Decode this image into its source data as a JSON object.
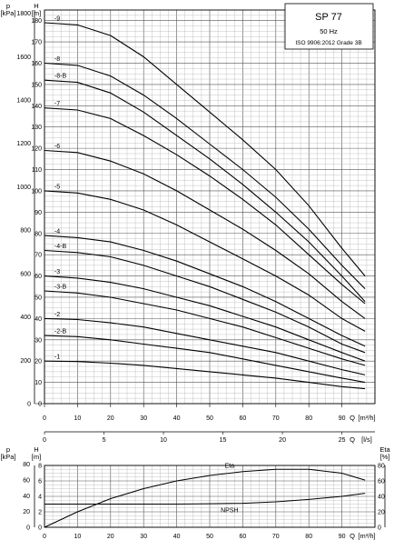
{
  "legend": {
    "model": "SP 77",
    "frequency": "50 Hz",
    "standard": "ISO 9906:2012 Grade 3B"
  },
  "chart_data": [
    {
      "type": "line",
      "name": "pump-curves",
      "x_axis_label": "Q [m³/h]",
      "x_axis_label_secondary": "Q [l/s]",
      "y_axis_label": "H [m]",
      "y_axis_label_secondary": "p [kPa]",
      "y_unit_top_left": "p",
      "y_unit_top_right": "H",
      "y_unit_left": "[kPa]",
      "y_unit_right": "[m]",
      "xlim": [
        0,
        100
      ],
      "ylim": [
        0,
        185
      ],
      "x_ticks": [
        0,
        10,
        20,
        30,
        40,
        50,
        60,
        70,
        80,
        90
      ],
      "x_tick_labels": [
        "0",
        "10",
        "20",
        "30",
        "40",
        "50",
        "60",
        "70",
        "80",
        "90"
      ],
      "x_end_label": "Q",
      "x_end_unit": "[m³/h]",
      "ls_ticks": [
        0,
        5,
        10,
        15,
        20,
        25
      ],
      "ls_tick_labels": [
        "0",
        "5",
        "10",
        "15",
        "20",
        "25"
      ],
      "ls_end_label": "Q",
      "ls_end_unit": "[l/s]",
      "h_ticks": [
        0,
        10,
        20,
        30,
        40,
        50,
        60,
        70,
        80,
        90,
        100,
        110,
        120,
        130,
        140,
        150,
        160,
        170,
        180
      ],
      "h_tick_labels": [
        "0",
        "10",
        "20",
        "30",
        "40",
        "50",
        "60",
        "70",
        "80",
        "90",
        "100",
        "110",
        "120",
        "130",
        "140",
        "150",
        "160",
        "170",
        "180"
      ],
      "p_ticks": [
        0,
        200,
        400,
        600,
        800,
        1000,
        1200,
        1400,
        1600,
        1800
      ],
      "p_tick_labels": [
        "0",
        "200",
        "400",
        "600",
        "800",
        "1000",
        "1200",
        "1400",
        "1600",
        "1800"
      ],
      "grid": true,
      "legend_position": "top-right",
      "series": [
        {
          "name": "-9",
          "label": "-9",
          "h0": 179,
          "x": [
            0,
            10,
            20,
            30,
            40,
            50,
            60,
            70,
            80,
            90,
            97
          ],
          "y": [
            179,
            178,
            173,
            163,
            150,
            137,
            124,
            110,
            93,
            73,
            60
          ]
        },
        {
          "name": "-8",
          "label": "-8",
          "h0": 160,
          "x": [
            0,
            10,
            20,
            30,
            40,
            50,
            60,
            70,
            80,
            90,
            97
          ],
          "y": [
            160,
            159,
            154,
            145,
            134,
            122,
            110,
            97,
            82,
            65,
            54
          ]
        },
        {
          "name": "-8-B",
          "label": "-8-B",
          "h0": 152,
          "x": [
            0,
            10,
            20,
            30,
            40,
            50,
            60,
            70,
            80,
            90,
            97
          ],
          "y": [
            152,
            151,
            146,
            137,
            126,
            115,
            103,
            90,
            76,
            60,
            48
          ]
        },
        {
          "name": "-7",
          "label": "-7",
          "h0": 139,
          "x": [
            0,
            10,
            20,
            30,
            40,
            50,
            60,
            70,
            80,
            90,
            97
          ],
          "y": [
            139,
            138,
            134,
            126,
            117,
            107,
            96,
            84,
            70,
            56,
            47
          ]
        },
        {
          "name": "-6",
          "label": "-6",
          "h0": 119,
          "x": [
            0,
            10,
            20,
            30,
            40,
            50,
            60,
            70,
            80,
            90,
            97
          ],
          "y": [
            119,
            118,
            114,
            108,
            100,
            91,
            82,
            72,
            61,
            48,
            40
          ]
        },
        {
          "name": "-5",
          "label": "-5",
          "h0": 100,
          "x": [
            0,
            10,
            20,
            30,
            40,
            50,
            60,
            70,
            80,
            90,
            97
          ],
          "y": [
            100,
            99,
            96,
            91,
            84,
            76,
            68,
            60,
            51,
            40,
            34
          ]
        },
        {
          "name": "-4",
          "label": "-4",
          "h0": 79,
          "x": [
            0,
            10,
            20,
            30,
            40,
            50,
            60,
            70,
            80,
            90,
            97
          ],
          "y": [
            79,
            78,
            76,
            72,
            67,
            61,
            55,
            48,
            40,
            32,
            27
          ]
        },
        {
          "name": "-4-B",
          "label": "-4-B",
          "h0": 72,
          "x": [
            0,
            10,
            20,
            30,
            40,
            50,
            60,
            70,
            80,
            90,
            97
          ],
          "y": [
            72,
            71,
            69,
            65,
            60,
            55,
            49,
            43,
            36,
            28,
            24
          ]
        },
        {
          "name": "-3",
          "label": "-3",
          "h0": 60,
          "x": [
            0,
            10,
            20,
            30,
            40,
            50,
            60,
            70,
            80,
            90,
            97
          ],
          "y": [
            60,
            59,
            57,
            54,
            50,
            46,
            41,
            36,
            30,
            24,
            20
          ]
        },
        {
          "name": "-3-B",
          "label": "-3-B",
          "h0": 53,
          "x": [
            0,
            10,
            20,
            30,
            40,
            50,
            60,
            70,
            80,
            90,
            97
          ],
          "y": [
            53,
            52,
            50,
            47,
            44,
            40,
            36,
            31,
            26,
            21,
            18
          ]
        },
        {
          "name": "-2",
          "label": "-2",
          "h0": 40,
          "x": [
            0,
            10,
            20,
            30,
            40,
            50,
            60,
            70,
            80,
            90,
            97
          ],
          "y": [
            40,
            39.5,
            38,
            36,
            33,
            30,
            27,
            24,
            20,
            16,
            13.5
          ]
        },
        {
          "name": "-2-B",
          "label": "-2-B",
          "h0": 32,
          "x": [
            0,
            10,
            20,
            30,
            40,
            50,
            60,
            70,
            80,
            90,
            97
          ],
          "y": [
            32,
            31.5,
            30,
            28,
            26,
            24,
            21,
            18,
            15,
            12,
            10
          ]
        },
        {
          "name": "-1",
          "label": "-1",
          "h0": 20,
          "x": [
            0,
            10,
            20,
            30,
            40,
            50,
            60,
            70,
            80,
            90,
            97
          ],
          "y": [
            20,
            19.8,
            19,
            18,
            16.5,
            15,
            13.5,
            12,
            10,
            8,
            7
          ]
        }
      ]
    },
    {
      "type": "line",
      "name": "efficiency-npsh",
      "x_axis_label": "Q [m³/h]",
      "x_end_label": "Q",
      "x_end_unit": "[m³/h]",
      "y_unit_left_top": "p",
      "y_unit_left": "[kPa]",
      "y_unit_h_top": "H",
      "y_unit_h": "[m]",
      "y_unit_right_top": "Eta",
      "y_unit_right": "[%]",
      "xlim": [
        0,
        100
      ],
      "ylim_h": [
        0,
        8
      ],
      "ylim_eta": [
        0,
        80
      ],
      "x_ticks": [
        0,
        10,
        20,
        30,
        40,
        50,
        60,
        70,
        80,
        90
      ],
      "x_tick_labels": [
        "0",
        "10",
        "20",
        "30",
        "40",
        "50",
        "60",
        "70",
        "80",
        "90"
      ],
      "h_ticks": [
        0,
        2,
        4,
        6,
        8
      ],
      "h_tick_labels": [
        "0",
        "2",
        "4",
        "6",
        "8"
      ],
      "p_ticks": [
        0,
        20,
        40,
        60,
        80
      ],
      "p_tick_labels": [
        "0",
        "20",
        "40",
        "60",
        "80"
      ],
      "eta_ticks": [
        0,
        20,
        40,
        60,
        80
      ],
      "eta_tick_labels": [
        "0",
        "20",
        "40",
        "60",
        "80"
      ],
      "grid": true,
      "series": [
        {
          "name": "Eta",
          "label": "Eta",
          "x": [
            0,
            10,
            20,
            30,
            40,
            50,
            60,
            70,
            80,
            90,
            97
          ],
          "y": [
            0,
            20,
            37,
            50,
            60,
            67,
            72,
            75,
            75,
            70,
            61
          ],
          "unit": "%"
        },
        {
          "name": "NPSH",
          "label": "NPSH",
          "x": [
            0,
            10,
            20,
            30,
            40,
            50,
            60,
            70,
            80,
            90,
            97
          ],
          "y": [
            3.0,
            3.0,
            3.0,
            3.0,
            3.0,
            3.05,
            3.1,
            3.3,
            3.6,
            4.0,
            4.4
          ],
          "unit": "m"
        }
      ]
    }
  ]
}
